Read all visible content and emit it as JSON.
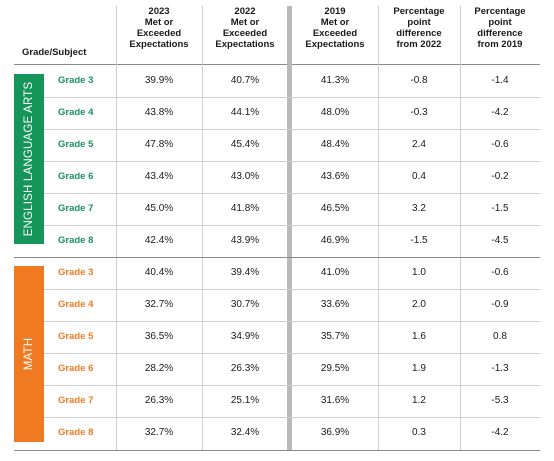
{
  "headers": {
    "grade_subject": "Grade/Subject",
    "col_2023": [
      "2023",
      "Met or",
      "Exceeded",
      "Expectations"
    ],
    "col_2022": [
      "2022",
      "Met or",
      "Exceeded",
      "Expectations"
    ],
    "col_2019": [
      "2019",
      "Met or",
      "Exceeded",
      "Expectations"
    ],
    "col_diff2022": [
      "Percentage",
      "point",
      "difference",
      "from 2022"
    ],
    "col_diff2019": [
      "Percentage",
      "point",
      "difference",
      "from 2019"
    ]
  },
  "subjects": {
    "ela": {
      "label": "ENGLISH LANGUAGE ARTS",
      "color": "#16955a",
      "rows": [
        {
          "grade": "Grade 3",
          "v2023": "39.9%",
          "v2022": "40.7%",
          "v2019": "41.3%",
          "d2022": "-0.8",
          "d2019": "-1.4"
        },
        {
          "grade": "Grade 4",
          "v2023": "43.8%",
          "v2022": "44.1%",
          "v2019": "48.0%",
          "d2022": "-0.3",
          "d2019": "-4.2"
        },
        {
          "grade": "Grade 5",
          "v2023": "47.8%",
          "v2022": "45.4%",
          "v2019": "48.4%",
          "d2022": "2.4",
          "d2019": "-0.6"
        },
        {
          "grade": "Grade 6",
          "v2023": "43.4%",
          "v2022": "43.0%",
          "v2019": "43.6%",
          "d2022": "0.4",
          "d2019": "-0.2"
        },
        {
          "grade": "Grade 7",
          "v2023": "45.0%",
          "v2022": "41.8%",
          "v2019": "46.5%",
          "d2022": "3.2",
          "d2019": "-1.5"
        },
        {
          "grade": "Grade 8",
          "v2023": "42.4%",
          "v2022": "43.9%",
          "v2019": "46.9%",
          "d2022": "-1.5",
          "d2019": "-4.5"
        }
      ]
    },
    "math": {
      "label": "MATH",
      "color": "#f07a22",
      "rows": [
        {
          "grade": "Grade 3",
          "v2023": "40.4%",
          "v2022": "39.4%",
          "v2019": "41.0%",
          "d2022": "1.0",
          "d2019": "-0.6"
        },
        {
          "grade": "Grade 4",
          "v2023": "32.7%",
          "v2022": "30.7%",
          "v2019": "33.6%",
          "d2022": "2.0",
          "d2019": "-0.9"
        },
        {
          "grade": "Grade 5",
          "v2023": "36.5%",
          "v2022": "34.9%",
          "v2019": "35.7%",
          "d2022": "1.6",
          "d2019": "0.8"
        },
        {
          "grade": "Grade 6",
          "v2023": "28.2%",
          "v2022": "26.3%",
          "v2019": "29.5%",
          "d2022": "1.9",
          "d2019": "-1.3"
        },
        {
          "grade": "Grade 7",
          "v2023": "26.3%",
          "v2022": "25.1%",
          "v2019": "31.6%",
          "d2022": "1.2",
          "d2019": "-5.3"
        },
        {
          "grade": "Grade 8",
          "v2023": "32.7%",
          "v2022": "32.4%",
          "v2019": "36.9%",
          "d2022": "0.3",
          "d2019": "-4.2"
        }
      ]
    }
  }
}
